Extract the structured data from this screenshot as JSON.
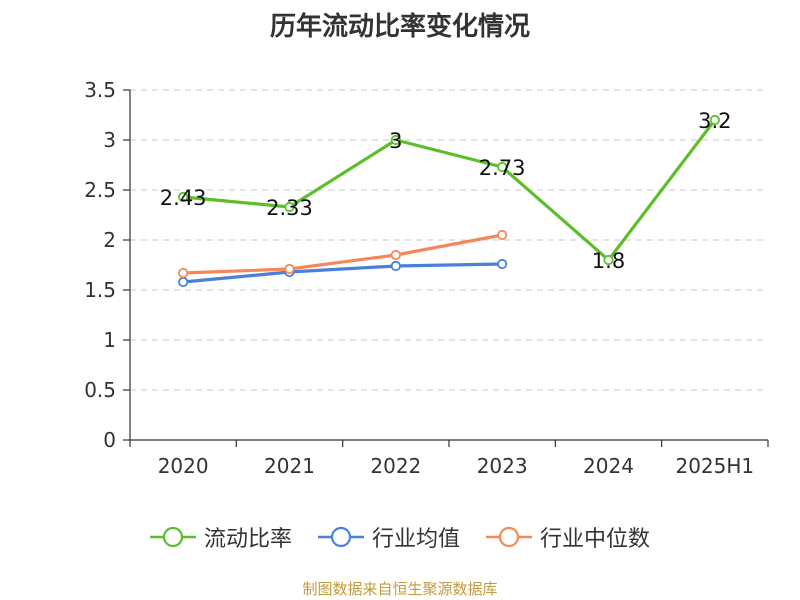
{
  "title": "历年流动比率变化情况",
  "footer": "制图数据来自恒生聚源数据库",
  "chart_data": {
    "type": "line",
    "title": "历年流动比率变化情况",
    "categories": [
      "2020",
      "2021",
      "2022",
      "2023",
      "2024",
      "2025H1"
    ],
    "ylim": [
      0,
      3.5
    ],
    "yticks": [
      0,
      0.5,
      1,
      1.5,
      2,
      2.5,
      3,
      3.5
    ],
    "ytick_labels": [
      "0",
      "0.5",
      "1",
      "1.5",
      "2",
      "2.5",
      "3",
      "3.5"
    ],
    "grid": true,
    "legend_position": "bottom",
    "series": [
      {
        "name": "流动比率",
        "color": "#5cbf2a",
        "values": [
          2.43,
          2.33,
          3.0,
          2.73,
          1.8,
          3.2
        ],
        "labels": [
          "2.43",
          "2.33",
          "3",
          "2.73",
          "1.8",
          "3.2"
        ]
      },
      {
        "name": "行业均值",
        "color": "#4a7fdc",
        "values": [
          1.58,
          1.68,
          1.74,
          1.76,
          null,
          null
        ]
      },
      {
        "name": "行业中位数",
        "color": "#f5875a",
        "values": [
          1.67,
          1.71,
          1.85,
          2.05,
          null,
          null
        ]
      }
    ]
  }
}
